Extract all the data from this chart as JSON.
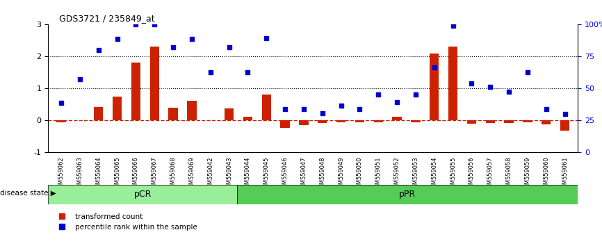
{
  "title": "GDS3721 / 235849_at",
  "samples": [
    "GSM559062",
    "GSM559063",
    "GSM559064",
    "GSM559065",
    "GSM559066",
    "GSM559067",
    "GSM559068",
    "GSM559069",
    "GSM559042",
    "GSM559043",
    "GSM559044",
    "GSM559045",
    "GSM559046",
    "GSM559047",
    "GSM559048",
    "GSM559049",
    "GSM559050",
    "GSM559051",
    "GSM559052",
    "GSM559053",
    "GSM559054",
    "GSM559055",
    "GSM559056",
    "GSM559057",
    "GSM559058",
    "GSM559059",
    "GSM559060",
    "GSM559061"
  ],
  "transformed_count": [
    -0.05,
    0.0,
    0.42,
    0.75,
    1.82,
    2.32,
    0.4,
    0.62,
    0.0,
    0.38,
    0.12,
    0.82,
    -0.22,
    -0.15,
    -0.08,
    -0.06,
    -0.06,
    -0.05,
    0.12,
    -0.05,
    2.1,
    2.32,
    -0.1,
    -0.08,
    -0.08,
    -0.05,
    -0.12,
    -0.32
  ],
  "percentile_rank": [
    0.55,
    1.3,
    2.2,
    2.55,
    3.0,
    3.0,
    2.3,
    2.55,
    1.5,
    2.3,
    1.52,
    2.57,
    0.35,
    0.35,
    0.22,
    0.47,
    0.35,
    0.82,
    0.57,
    0.82,
    1.67,
    2.97,
    1.17,
    1.05,
    0.9,
    1.52,
    0.35,
    0.2
  ],
  "pCR_count": 10,
  "pPR_count": 18,
  "bar_color": "#cc2200",
  "dot_color": "#0000cc",
  "zero_line_color": "#cc2200",
  "dotted_line_color": "#000000",
  "pCR_color": "#99ee99",
  "pPR_color": "#55cc55",
  "ylim": [
    -1,
    3
  ],
  "y2lim": [
    0,
    100
  ],
  "yticks": [
    -1,
    0,
    1,
    2,
    3
  ],
  "y2ticks": [
    0,
    25,
    50,
    75,
    100
  ],
  "dotted_lines": [
    1.0,
    2.0
  ],
  "background_color": "#ffffff"
}
